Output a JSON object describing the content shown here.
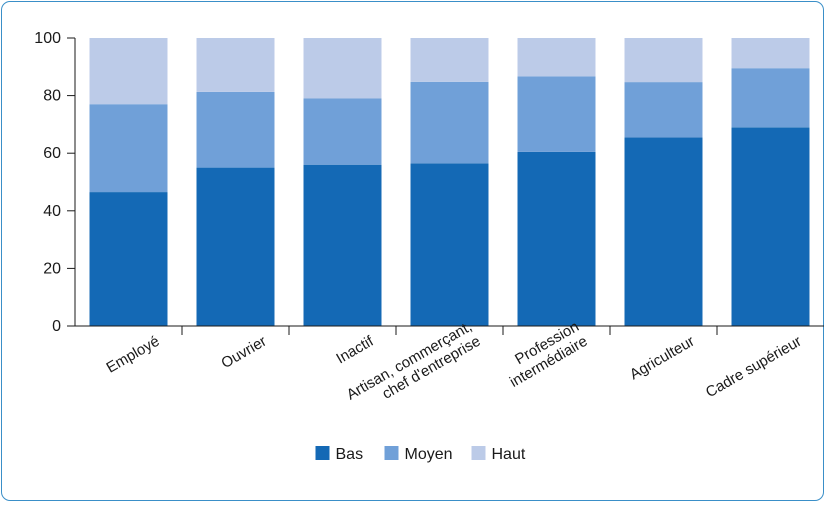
{
  "chart_data": {
    "type": "bar",
    "stacked": true,
    "title": "",
    "xlabel": "",
    "ylabel": "",
    "ylim": [
      0,
      100
    ],
    "yticks": [
      0,
      20,
      40,
      60,
      80,
      100
    ],
    "grid": false,
    "legend_position": "bottom",
    "categories": [
      [
        "Employé"
      ],
      [
        "Ouvrier"
      ],
      [
        "Inactif"
      ],
      [
        "Artisan, commerçant,",
        "chef d'entreprise"
      ],
      [
        "Profession",
        "intermédiaire"
      ],
      [
        "Agriculteur"
      ],
      [
        "Cadre supérieur"
      ]
    ],
    "series": [
      {
        "name": "Bas",
        "color": "#1469b5",
        "values": [
          46.5,
          55,
          56,
          56.5,
          60.5,
          65.5,
          69
        ]
      },
      {
        "name": "Moyen",
        "color": "#70a0d8",
        "values": [
          30.5,
          26.3,
          23,
          28.3,
          26.2,
          19.2,
          20.5
        ]
      },
      {
        "name": "Haut",
        "color": "#bccbe8",
        "values": [
          23,
          18.7,
          21,
          15.2,
          13.3,
          15.3,
          10.5
        ]
      }
    ]
  }
}
